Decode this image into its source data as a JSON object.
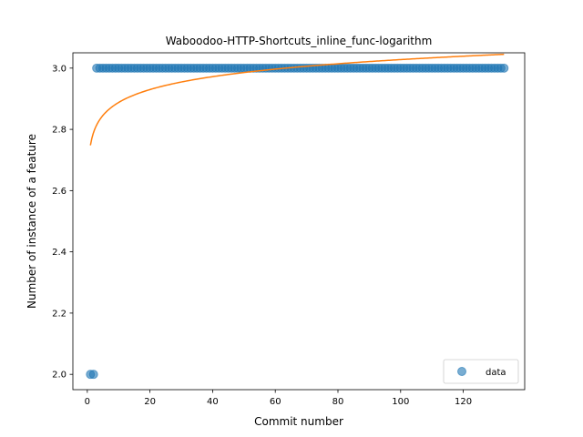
{
  "chart_data": {
    "type": "scatter",
    "title": "Waboodoo-HTTP-Shortcuts_inline_func-logarithm",
    "xlabel": "Commit number",
    "ylabel": "Number of instance of a feature",
    "xlim": [
      -4.6,
      139.6
    ],
    "ylim": [
      1.95,
      3.05
    ],
    "xticks": [
      0,
      20,
      40,
      60,
      80,
      100,
      120
    ],
    "yticks": [
      2.0,
      2.2,
      2.4,
      2.6,
      2.8,
      3.0
    ],
    "legend_position": "lower right",
    "series": [
      {
        "name": "data",
        "kind": "scatter",
        "color": "#1f77b4",
        "points": [
          [
            1,
            2.0
          ],
          [
            2,
            2.0
          ]
        ],
        "constant_run": {
          "x_start": 3,
          "x_end": 133,
          "y": 3.0
        }
      },
      {
        "kind": "line",
        "color": "#ff7f0e",
        "model": "logarithmic",
        "a": 2.7478,
        "b": 0.0608,
        "x_start": 1,
        "x_end": 133
      }
    ]
  }
}
